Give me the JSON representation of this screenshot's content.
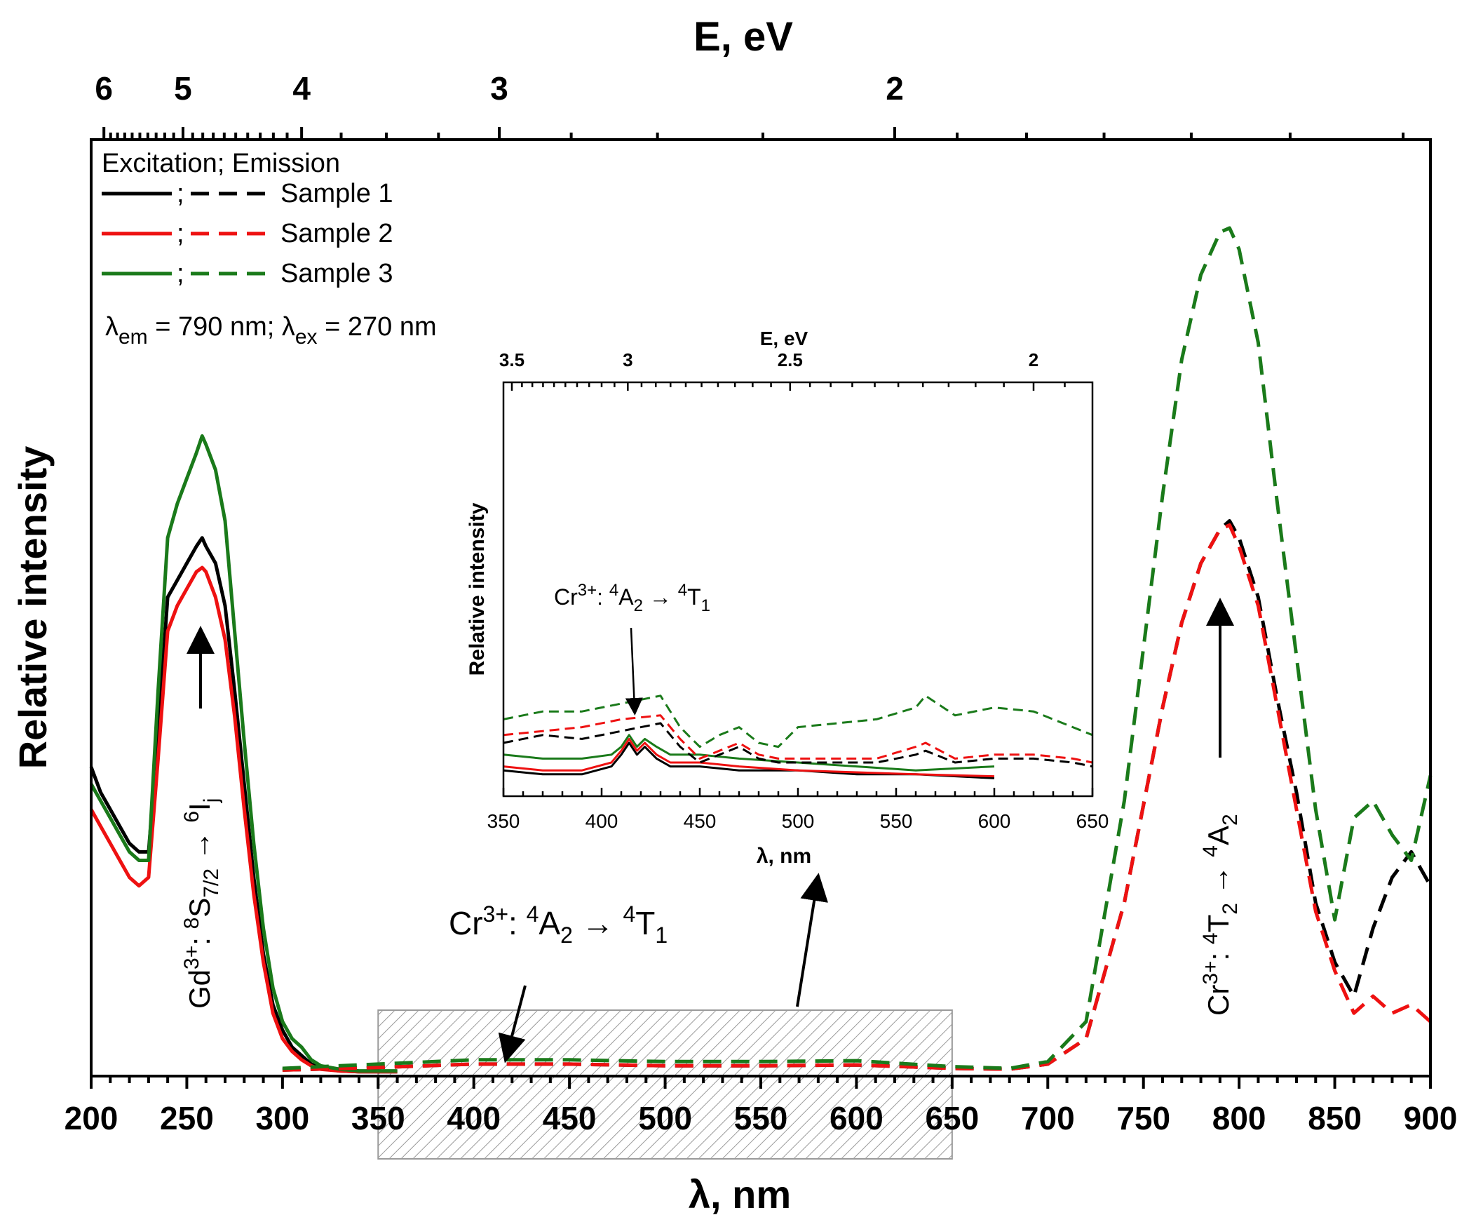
{
  "chart_data": [
    {
      "id": "main",
      "type": "line",
      "xlabel": "λ, nm",
      "ylabel": "Relative intensity",
      "x2label": "E, eV",
      "xlim": [
        200,
        900
      ],
      "xticks": [
        200,
        250,
        300,
        350,
        400,
        450,
        500,
        550,
        600,
        650,
        700,
        750,
        800,
        850,
        900
      ],
      "x2ticks": [
        6,
        5,
        4,
        3,
        2
      ],
      "ylim": [
        0,
        100
      ],
      "legend": {
        "position": "top-left",
        "header": "Excitation; Emission",
        "separator": ";",
        "entries": [
          "Sample 1",
          "Sample 2",
          "Sample 3"
        ],
        "note_parts": [
          "λ",
          "em",
          " = 790 nm; ",
          "λ",
          "ex",
          " = 270 nm"
        ]
      },
      "series": [
        {
          "name": "Sample 1",
          "kind": "excitation",
          "color": "#000000",
          "x": [
            200,
            205,
            210,
            215,
            220,
            225,
            230,
            235,
            240,
            245,
            250,
            255,
            258,
            260,
            265,
            270,
            275,
            280,
            285,
            290,
            295,
            300,
            305,
            310,
            315,
            320,
            330,
            340,
            350,
            360
          ],
          "y": [
            36,
            33,
            31,
            29,
            27,
            26,
            26,
            40,
            56,
            58,
            60,
            62,
            63,
            62,
            60,
            55,
            45,
            34,
            23,
            14,
            8,
            5,
            3,
            2,
            1,
            0.5,
            0.2,
            0.1,
            0.1,
            0.1
          ]
        },
        {
          "name": "Sample 2",
          "kind": "excitation",
          "color": "#ee1111",
          "x": [
            200,
            205,
            210,
            215,
            220,
            225,
            230,
            235,
            240,
            245,
            250,
            255,
            258,
            260,
            265,
            270,
            275,
            280,
            285,
            290,
            295,
            300,
            305,
            310,
            315,
            320,
            330,
            340,
            350,
            360
          ],
          "y": [
            31,
            29,
            27,
            25,
            23,
            22,
            23,
            37,
            52,
            55,
            57,
            59,
            59.5,
            59,
            56,
            51,
            42,
            31,
            21,
            13,
            7,
            4,
            2.5,
            1.5,
            0.8,
            0.4,
            0.2,
            0.1,
            0.1,
            0.1
          ]
        },
        {
          "name": "Sample 3",
          "kind": "excitation",
          "color": "#1a7a1a",
          "x": [
            200,
            205,
            210,
            215,
            220,
            225,
            230,
            235,
            240,
            245,
            250,
            255,
            258,
            260,
            265,
            270,
            275,
            280,
            285,
            290,
            295,
            300,
            305,
            310,
            315,
            320,
            330,
            340,
            350,
            360
          ],
          "y": [
            34,
            32,
            30,
            28,
            26,
            25,
            25,
            45,
            63,
            67,
            70,
            73,
            75,
            74,
            71,
            65,
            52,
            39,
            27,
            17,
            10,
            6,
            4,
            3,
            1.5,
            0.8,
            0.4,
            0.2,
            0.2,
            0.2
          ]
        },
        {
          "name": "Sample 1",
          "kind": "emission",
          "color": "#000000",
          "x": [
            300,
            350,
            400,
            450,
            500,
            550,
            600,
            650,
            680,
            700,
            720,
            740,
            760,
            770,
            780,
            790,
            795,
            800,
            810,
            820,
            830,
            840,
            850,
            860,
            870,
            880,
            890,
            900
          ],
          "y": [
            0.3,
            0.6,
            1,
            1,
            0.8,
            0.8,
            0.9,
            0.5,
            0.4,
            1,
            4,
            20,
            43,
            53,
            60,
            64,
            65,
            63,
            56,
            44,
            33,
            20,
            13,
            9,
            17,
            23,
            26,
            22
          ]
        },
        {
          "name": "Sample 2",
          "kind": "emission",
          "color": "#ee1111",
          "x": [
            300,
            350,
            400,
            450,
            500,
            550,
            600,
            650,
            680,
            700,
            720,
            740,
            760,
            770,
            780,
            790,
            795,
            800,
            810,
            820,
            830,
            840,
            850,
            860,
            870,
            880,
            890,
            900
          ],
          "y": [
            0.3,
            0.6,
            1,
            1,
            0.8,
            0.8,
            0.9,
            0.5,
            0.4,
            1,
            4,
            20,
            43,
            53,
            60,
            64,
            64.5,
            62,
            55,
            43,
            31,
            19,
            12,
            7,
            9,
            7,
            8,
            6
          ]
        },
        {
          "name": "Sample 3",
          "kind": "emission",
          "color": "#1a7a1a",
          "x": [
            300,
            350,
            400,
            450,
            500,
            550,
            600,
            650,
            680,
            700,
            720,
            740,
            760,
            770,
            780,
            790,
            795,
            800,
            810,
            820,
            830,
            840,
            850,
            860,
            870,
            880,
            890,
            900
          ],
          "y": [
            0.5,
            1,
            1.5,
            1.5,
            1.3,
            1.3,
            1.4,
            0.7,
            0.5,
            1.3,
            6,
            32,
            68,
            84,
            94,
            99,
            99.5,
            97,
            86,
            67,
            49,
            31,
            18,
            30,
            32,
            28,
            25,
            35
          ]
        }
      ],
      "annotations": [
        {
          "label": [
            "Gd",
            "3+",
            ": ",
            "8",
            "S",
            "7/2",
            " → ",
            "6",
            "I",
            "j"
          ],
          "x": 258,
          "y": 55,
          "arrow": "up",
          "rotated": true
        },
        {
          "label": [
            "Cr",
            "3+",
            ": ",
            "4",
            "A",
            "2",
            " → ",
            "4",
            "T",
            "1"
          ],
          "x": 418,
          "y": 7,
          "arrow": "down"
        },
        {
          "label": [
            "Cr",
            "3+",
            ": ",
            "4",
            "T",
            "2",
            " → ",
            "4",
            "A",
            "2"
          ],
          "x": 790,
          "y": 60,
          "arrow": "up",
          "rotated": true
        }
      ],
      "highlight_region": {
        "xmin": 350,
        "xmax": 650,
        "pattern": "hatched"
      }
    },
    {
      "id": "inset",
      "type": "line",
      "xlabel": "λ, nm",
      "ylabel": "Relative intensity",
      "x2label": "E, eV",
      "xlim": [
        350,
        650
      ],
      "xticks": [
        350,
        400,
        450,
        500,
        550,
        600,
        650
      ],
      "x2ticks": [
        "3.5",
        "3",
        "2.5",
        "2"
      ],
      "ylim": [
        0,
        100
      ],
      "annotation": {
        "label": [
          "Cr",
          "3+",
          ": ",
          "4",
          "A",
          "2",
          " → ",
          "4",
          "T",
          "1"
        ],
        "x": 418,
        "arrow": "down"
      },
      "series": [
        {
          "name": "Sample 1",
          "kind": "excitation",
          "color": "#000000",
          "x": [
            350,
            370,
            390,
            405,
            410,
            414,
            418,
            422,
            428,
            435,
            450,
            470,
            500,
            530,
            560,
            600
          ],
          "y": [
            3,
            2,
            2,
            4,
            7,
            10,
            7,
            9,
            6,
            4,
            4,
            3,
            3,
            2,
            2,
            1
          ]
        },
        {
          "name": "Sample 2",
          "kind": "excitation",
          "color": "#ee1111",
          "x": [
            350,
            370,
            390,
            405,
            410,
            414,
            418,
            422,
            428,
            435,
            450,
            470,
            500,
            530,
            560,
            600
          ],
          "y": [
            4,
            3,
            3,
            5,
            8,
            11,
            8,
            10,
            7,
            5,
            5,
            4,
            3,
            2.5,
            2,
            1.5
          ]
        },
        {
          "name": "Sample 3",
          "kind": "excitation",
          "color": "#1a7a1a",
          "x": [
            350,
            370,
            390,
            405,
            410,
            414,
            418,
            422,
            428,
            435,
            450,
            470,
            500,
            530,
            560,
            600
          ],
          "y": [
            7,
            6,
            6,
            7,
            9,
            12,
            9,
            11,
            9,
            7,
            7,
            6,
            5,
            4,
            3,
            4
          ]
        },
        {
          "name": "Sample 1",
          "kind": "emission",
          "color": "#000000",
          "x": [
            350,
            370,
            390,
            410,
            430,
            440,
            450,
            460,
            470,
            480,
            490,
            500,
            520,
            540,
            560,
            565,
            580,
            600,
            620,
            640,
            650
          ],
          "y": [
            10,
            12,
            11,
            13,
            15,
            9,
            5,
            7,
            9,
            6,
            5,
            5,
            5,
            5,
            7,
            8,
            5,
            6,
            6,
            5,
            4
          ]
        },
        {
          "name": "Sample 2",
          "kind": "emission",
          "color": "#ee1111",
          "x": [
            350,
            370,
            390,
            410,
            430,
            440,
            450,
            460,
            470,
            480,
            490,
            500,
            520,
            540,
            560,
            565,
            580,
            600,
            620,
            640,
            650
          ],
          "y": [
            12,
            13,
            14,
            16,
            17,
            11,
            6,
            8,
            10,
            7,
            6,
            6,
            6,
            6,
            9,
            10,
            6,
            7,
            7,
            6,
            5
          ]
        },
        {
          "name": "Sample 3",
          "kind": "emission",
          "color": "#1a7a1a",
          "x": [
            350,
            370,
            390,
            410,
            430,
            440,
            450,
            460,
            470,
            480,
            490,
            500,
            520,
            540,
            560,
            565,
            580,
            600,
            620,
            640,
            650
          ],
          "y": [
            16,
            18,
            18,
            20,
            22,
            14,
            9,
            12,
            14,
            10,
            9,
            14,
            15,
            16,
            19,
            22,
            17,
            19,
            18,
            14,
            12
          ]
        }
      ]
    }
  ]
}
